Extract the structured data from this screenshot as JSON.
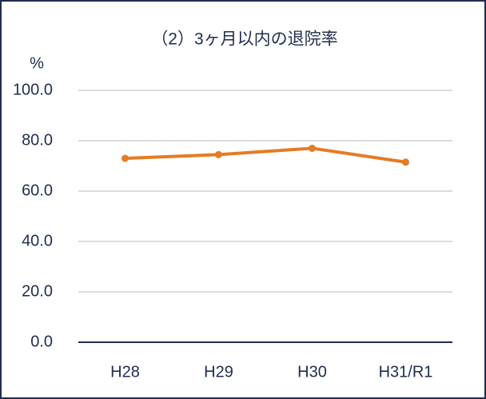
{
  "chart_data": {
    "type": "line",
    "title": "（2）3ヶ月以内の退院率",
    "y_label": "%",
    "categories": [
      "H28",
      "H29",
      "H30",
      "H31/R1"
    ],
    "series": [
      {
        "color": "#e57c23",
        "values": [
          73.0,
          74.5,
          77.0,
          71.5
        ]
      }
    ],
    "ylim": [
      0,
      100
    ],
    "yticks": [
      {
        "value": 0,
        "label": "0.0"
      },
      {
        "value": 20,
        "label": "20.0"
      },
      {
        "value": 40,
        "label": "40.0"
      },
      {
        "value": 60,
        "label": "60.0"
      },
      {
        "value": 80,
        "label": "80.0"
      },
      {
        "value": 100,
        "label": "100.0"
      }
    ],
    "grid": true
  }
}
